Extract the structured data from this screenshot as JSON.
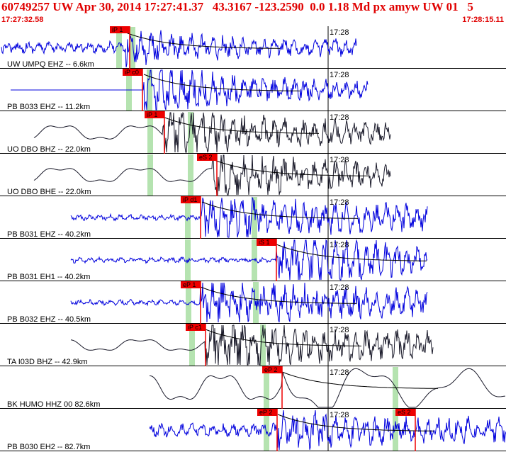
{
  "header": {
    "title": "60749257 UW Apr 30, 2014 17:27:41.37   43.3167 -123.2590  0.0 1.18 Md px amyw UW 01   5",
    "start_time": "17:27:32.58",
    "end_time": "17:28:15.11"
  },
  "colors": {
    "header_text": "#e00000",
    "trace_blue": "#0000dd",
    "trace_black": "#1a1a2a",
    "pick_box": "#ee0000",
    "window_green": "#b5e3b0",
    "decay_curve": "#000000",
    "coda_line": "#cc0000"
  },
  "chart_data": {
    "type": "seismogram",
    "time_axis": {
      "start": "17:27:32.58",
      "end": "17:28:15.11",
      "minute_mark": "17:28"
    },
    "panels": [
      {
        "label": "UW UMPQ EHZ -- 6.6km",
        "color": "blue",
        "picks": [
          "iP 1"
        ],
        "green_windows": [
          0.235,
          0.262
        ]
      },
      {
        "label": "PB B033 EHZ -- 11.2km",
        "color": "blue",
        "picks": [
          "iP c0"
        ],
        "green_windows": [
          0.255,
          0.295
        ]
      },
      {
        "label": "UO DBO BHZ -- 22.0km",
        "color": "black",
        "picks": [
          "iP 1"
        ],
        "green_windows": [
          0.297,
          0.377
        ]
      },
      {
        "label": "UO DBO BHE -- 22.0km",
        "color": "black",
        "picks": [
          "eS 2"
        ],
        "green_windows": [
          0.297,
          0.377
        ]
      },
      {
        "label": "PB B031 EHZ -- 40.2km",
        "color": "blue",
        "picks": [
          "iP d1"
        ],
        "green_windows": [
          0.371,
          0.503
        ]
      },
      {
        "label": "PB B031 EH1 -- 40.2km",
        "color": "blue",
        "picks": [
          "iS 1"
        ],
        "green_windows": [
          0.371,
          0.503
        ]
      },
      {
        "label": "PB B032 EHZ -- 40.5km",
        "color": "blue",
        "picks": [
          "eP 1"
        ],
        "green_windows": [
          0.373,
          0.505
        ]
      },
      {
        "label": "TA I03D BHZ -- 42.9km",
        "color": "black",
        "picks": [
          "iP c1"
        ],
        "green_windows": [
          0.38,
          0.52
        ]
      },
      {
        "label": "BK HUMO HHZ 00 82.6km",
        "color": "black",
        "picks": [
          "eP 2"
        ],
        "green_windows": [
          0.527,
          0.781
        ]
      },
      {
        "label": "PB B030 EH2 -- 82.7km",
        "color": "blue",
        "picks": [
          "eP 2",
          "eS 2"
        ],
        "green_windows": [
          0.527,
          0.781
        ]
      }
    ]
  }
}
